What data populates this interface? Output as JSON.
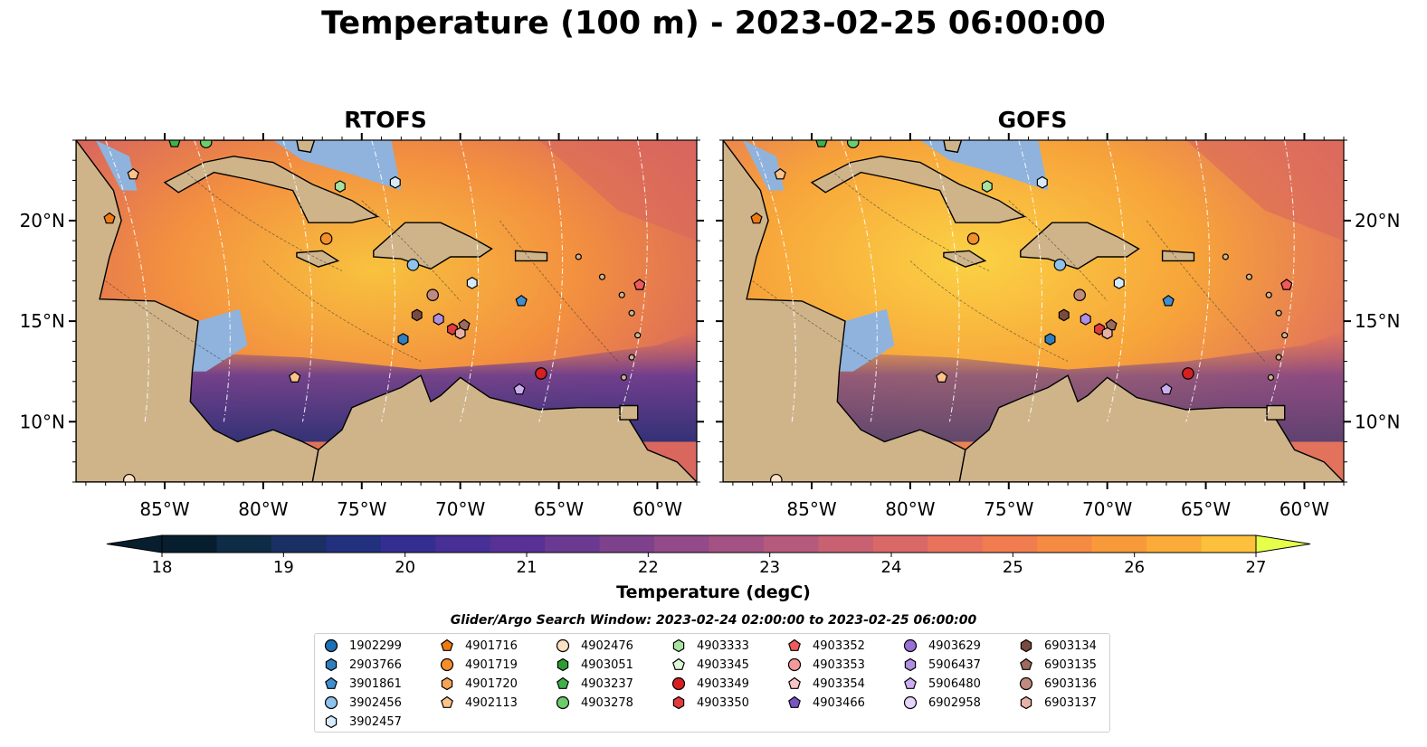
{
  "title": "Temperature (100 m) - 2023-02-25 06:00:00",
  "panels": [
    {
      "title": "RTOFS"
    },
    {
      "title": "GOFS"
    }
  ],
  "lon_ticks": [
    "85°W",
    "80°W",
    "75°W",
    "70°W",
    "65°W",
    "60°W"
  ],
  "lat_ticks": [
    "20°N",
    "15°N",
    "10°N"
  ],
  "extent": {
    "lon": [
      -89.5,
      -58.0
    ],
    "lat": [
      7.0,
      24.0
    ]
  },
  "colorbar": {
    "label": "Temperature (degC)",
    "min": 18,
    "max": 27,
    "ticks": [
      "18",
      "19",
      "20",
      "21",
      "22",
      "23",
      "24",
      "25",
      "26",
      "27"
    ],
    "colors": [
      "#071e2e",
      "#0f2c46",
      "#1a2f64",
      "#23307d",
      "#352e91",
      "#472f95",
      "#583196",
      "#6a3a92",
      "#7e428d",
      "#924a89",
      "#a45283",
      "#b65a7c",
      "#c86272",
      "#d96966",
      "#e8725b",
      "#f07c4f",
      "#f58b43",
      "#f89a3a",
      "#fbac38",
      "#fcc03c",
      "#f8d842"
    ]
  },
  "search_window": "Glider/Argo Search Window: 2023-02-24 02:00:00 to 2023-02-25 06:00:00",
  "legend": [
    {
      "id": "1902299",
      "marker": "circle",
      "color": "#1f6fb4"
    },
    {
      "id": "2903766",
      "marker": "hexagon",
      "color": "#2f7fc0"
    },
    {
      "id": "3901861",
      "marker": "pentagon",
      "color": "#3f8fd0"
    },
    {
      "id": "3902456",
      "marker": "circle",
      "color": "#8fc2ec"
    },
    {
      "id": "3902457",
      "marker": "hexagon",
      "color": "#d7eaf9"
    },
    {
      "id": "4901716",
      "marker": "pentagon",
      "color": "#f07a10"
    },
    {
      "id": "4901719",
      "marker": "circle",
      "color": "#f58e2a"
    },
    {
      "id": "4901720",
      "marker": "hexagon",
      "color": "#f7a356"
    },
    {
      "id": "4902113",
      "marker": "pentagon",
      "color": "#fbc28a"
    },
    {
      "id": "4902476",
      "marker": "circle",
      "color": "#fde1c3"
    },
    {
      "id": "4903051",
      "marker": "hexagon",
      "color": "#2e9b33"
    },
    {
      "id": "4903237",
      "marker": "pentagon",
      "color": "#3fb04a"
    },
    {
      "id": "4903278",
      "marker": "circle",
      "color": "#6ccc6c"
    },
    {
      "id": "4903333",
      "marker": "hexagon",
      "color": "#a6e3a0"
    },
    {
      "id": "4903345",
      "marker": "pentagon",
      "color": "#dff6d8"
    },
    {
      "id": "4903349",
      "marker": "circle",
      "color": "#d42020"
    },
    {
      "id": "4903350",
      "marker": "hexagon",
      "color": "#e33b3b"
    },
    {
      "id": "4903352",
      "marker": "pentagon",
      "color": "#ef5a5a"
    },
    {
      "id": "4903353",
      "marker": "circle",
      "color": "#f59a9a"
    },
    {
      "id": "4903354",
      "marker": "pentagon",
      "color": "#fbc4c4"
    },
    {
      "id": "4903466",
      "marker": "pentagon",
      "color": "#7b55c4"
    },
    {
      "id": "4903629",
      "marker": "circle",
      "color": "#9a6fd6"
    },
    {
      "id": "5906437",
      "marker": "hexagon",
      "color": "#b08ee2"
    },
    {
      "id": "5906480",
      "marker": "pentagon",
      "color": "#caaef0"
    },
    {
      "id": "6902958",
      "marker": "circle",
      "color": "#e6d4fb"
    },
    {
      "id": "6903134",
      "marker": "hexagon",
      "color": "#7a4a3e"
    },
    {
      "id": "6903135",
      "marker": "pentagon",
      "color": "#9c6a5e"
    },
    {
      "id": "6903136",
      "marker": "circle",
      "color": "#c08a7e"
    },
    {
      "id": "6903137",
      "marker": "hexagon",
      "color": "#e7b2a6"
    }
  ],
  "floats": [
    {
      "id": "4901716",
      "marker": "pentagon",
      "color": "#f07a10",
      "lon": -87.8,
      "lat": 20.1
    },
    {
      "id": "4902113",
      "marker": "pentagon",
      "color": "#fbc28a",
      "lon": -86.6,
      "lat": 22.3
    },
    {
      "id": "4903237",
      "marker": "pentagon",
      "color": "#3fb04a",
      "lon": -84.5,
      "lat": 23.9
    },
    {
      "id": "4903278",
      "marker": "circle",
      "color": "#6ccc6c",
      "lon": -82.9,
      "lat": 23.9
    },
    {
      "id": "4903333",
      "marker": "hexagon",
      "color": "#a6e3a0",
      "lon": -76.1,
      "lat": 21.7
    },
    {
      "id": "3902457",
      "marker": "hexagon",
      "color": "#d7eaf9",
      "lon": -73.3,
      "lat": 21.9
    },
    {
      "id": "4901719",
      "marker": "circle",
      "color": "#f58e2a",
      "lon": -76.8,
      "lat": 19.1
    },
    {
      "id": "3902456",
      "marker": "circle",
      "color": "#8fc2ec",
      "lon": -72.4,
      "lat": 17.8
    },
    {
      "id": "3902457",
      "marker": "hexagon",
      "color": "#d7eaf9",
      "lon": -69.4,
      "lat": 16.9
    },
    {
      "id": "3901861",
      "marker": "pentagon",
      "color": "#3f8fd0",
      "lon": -66.9,
      "lat": 16.0
    },
    {
      "id": "4903352",
      "marker": "pentagon",
      "color": "#ef5a5a",
      "lon": -60.9,
      "lat": 16.8
    },
    {
      "id": "6903136",
      "marker": "circle",
      "color": "#c08a7e",
      "lon": -71.4,
      "lat": 16.3
    },
    {
      "id": "6903134",
      "marker": "hexagon",
      "color": "#7a4a3e",
      "lon": -72.2,
      "lat": 15.3
    },
    {
      "id": "5906437",
      "marker": "hexagon",
      "color": "#b08ee2",
      "lon": -71.1,
      "lat": 15.1
    },
    {
      "id": "4903350",
      "marker": "hexagon",
      "color": "#e33b3b",
      "lon": -70.4,
      "lat": 14.6
    },
    {
      "id": "6903135",
      "marker": "pentagon",
      "color": "#9c6a5e",
      "lon": -69.8,
      "lat": 14.8
    },
    {
      "id": "6903137",
      "marker": "hexagon",
      "color": "#e7b2a6",
      "lon": -70.0,
      "lat": 14.4
    },
    {
      "id": "2903766",
      "marker": "hexagon",
      "color": "#2f7fc0",
      "lon": -72.9,
      "lat": 14.1
    },
    {
      "id": "4902113",
      "marker": "pentagon",
      "color": "#fbc28a",
      "lon": -78.4,
      "lat": 12.2
    },
    {
      "id": "4903349",
      "marker": "circle",
      "color": "#d42020",
      "lon": -65.9,
      "lat": 12.4
    },
    {
      "id": "5906480",
      "marker": "pentagon",
      "color": "#caaef0",
      "lon": -67.0,
      "lat": 11.6
    },
    {
      "id": "4902476",
      "marker": "circle",
      "color": "#fde1c3",
      "lon": -86.8,
      "lat": 7.1
    }
  ]
}
